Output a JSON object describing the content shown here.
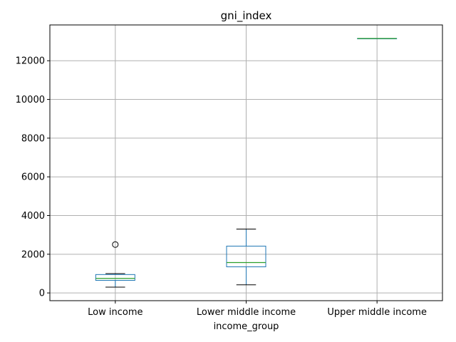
{
  "chart_data": {
    "type": "box",
    "title": "gni_index",
    "xlabel": "income_group",
    "ylabel": "",
    "ylim": [
      -400,
      13850
    ],
    "yticks": [
      0,
      2000,
      4000,
      6000,
      8000,
      10000,
      12000
    ],
    "ytick_labels": [
      "0",
      "2000",
      "4000",
      "6000",
      "8000",
      "10000",
      "12000"
    ],
    "grid": true,
    "categories": [
      "Low income",
      "Lower middle income",
      "Upper middle income"
    ],
    "boxes": [
      {
        "category": "Low income",
        "whisker_low": 300,
        "q1": 650,
        "median": 750,
        "q3": 950,
        "whisker_high": 1000,
        "outliers": [
          2500
        ]
      },
      {
        "category": "Lower middle income",
        "whisker_low": 420,
        "q1": 1350,
        "median": 1570,
        "q3": 2420,
        "whisker_high": 3300,
        "outliers": []
      },
      {
        "category": "Upper middle income",
        "whisker_low": 13150,
        "q1": 13150,
        "median": 13150,
        "q3": 13150,
        "whisker_high": 13150,
        "outliers": []
      }
    ],
    "colors": {
      "box": "#1f77b4",
      "median": "#2ca02c",
      "whisker": "#000000",
      "grid": "#b0b0b0"
    }
  }
}
